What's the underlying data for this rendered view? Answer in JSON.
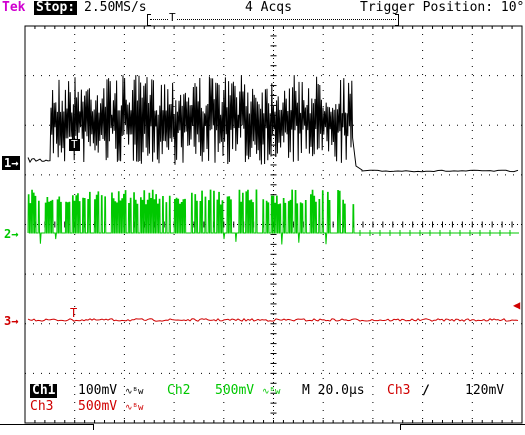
{
  "header": {
    "brand": "Tek",
    "run_state": "Stop:",
    "sample_rate": "2.50MS/s",
    "acqs": "4 Acqs",
    "trigger_position_label": "Trigger Position: 10°",
    "trigger_marker": "T"
  },
  "channels": [
    {
      "id": "1",
      "marker": "1→",
      "color": "#000000"
    },
    {
      "id": "2",
      "marker": "2→",
      "color": "#00c800"
    },
    {
      "id": "3",
      "marker": "3→",
      "color": "#d00000"
    }
  ],
  "trace_trigger_marker": "T",
  "ch3_trigger_marker": "T",
  "footer": {
    "ch1_label": "Ch1",
    "ch1_scale": "100mV",
    "ch1_bw": "∿ᴮw",
    "ch2_label": "Ch2",
    "ch2_scale": "500mV",
    "ch2_bw": "∿ᴮw",
    "timebase": "M 20.0µs",
    "trig_source": "Ch3",
    "trig_slope": "∕",
    "trig_level": "120mV",
    "ch3_label": "Ch3",
    "ch3_scale": "500mV",
    "ch3_bw": "∿ᴮw"
  },
  "colors": {
    "grid": "#000000",
    "ch1": "#000000",
    "ch2": "#00c800",
    "ch3": "#d00000",
    "brand": "#d000d0"
  }
}
